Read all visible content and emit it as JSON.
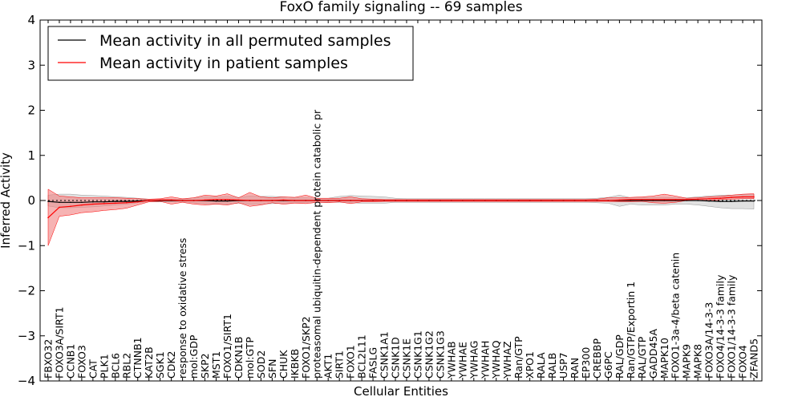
{
  "chart_data": {
    "type": "line",
    "title": "FoxO family signaling -- 69 samples",
    "xlabel": "Cellular Entities",
    "ylabel": "Inferred Activity",
    "ylim": [
      -4,
      4
    ],
    "yticks": [
      -4,
      -3,
      -2,
      -1,
      0,
      1,
      2,
      3,
      4
    ],
    "legend_position": "top-left",
    "colors": {
      "permuted": "#000000",
      "patient": "#ff0000",
      "patient_band": "#f08080",
      "permuted_band": "#c8c8c8"
    },
    "categories": [
      "FBXO32",
      "FOXO3A/SIRT1",
      "CCNB1",
      "FOXO3",
      "CAT",
      "PLK1",
      "BCL6",
      "RBL2",
      "CTNNB1",
      "KAT2B",
      "SGK1",
      "CDK2",
      "response to oxidative stress",
      "mol:GDP",
      "SKP2",
      "MST1",
      "FOXO1/SIRT1",
      "CDKN1B",
      "mol:GTP",
      "SOD2",
      "SFN",
      "CHUK",
      "IKBKB",
      "FOXO1/SKP2",
      "proteasomal ubiquitin-dependent protein catabolic pr",
      "AKT1",
      "SIRT1",
      "FOXO1",
      "BCL2L11",
      "FASLG",
      "CSNK1A1",
      "CSNK1D",
      "CSNK1E",
      "CSNK1G1",
      "CSNK1G2",
      "CSNK1G3",
      "YWHAB",
      "YWHAE",
      "YWHAG",
      "YWHAH",
      "YWHAQ",
      "YWHAZ",
      "Ran/GTP",
      "XPO1",
      "RALA",
      "RALB",
      "USP7",
      "RAN",
      "EP300",
      "CREBBP",
      "G6PC",
      "RAL/GDP",
      "Ran/GTP/Exportin 1",
      "RAL/GTP",
      "GADD45A",
      "MAPK10",
      "FOXO1-3a-4/beta catenin",
      "MAPK9",
      "MAPK8",
      "FOXO3A/14-3-3",
      "FOXO4/14-3-3 family",
      "FOXO1/14-3-3 family",
      "FOXO4",
      "ZFAND5"
    ],
    "series": [
      {
        "name": "Mean activity in all permuted samples",
        "values": [
          -0.02,
          -0.04,
          -0.04,
          -0.04,
          -0.03,
          -0.03,
          -0.02,
          -0.02,
          -0.01,
          0.0,
          0.0,
          0.0,
          0.0,
          0.0,
          0.0,
          -0.01,
          -0.01,
          0.0,
          0.0,
          0.0,
          0.0,
          0.0,
          0.0,
          0.0,
          0.0,
          0.0,
          0.0,
          0.0,
          0.0,
          0.0,
          0.0,
          0.0,
          0.0,
          0.0,
          0.0,
          0.0,
          0.0,
          0.0,
          0.0,
          0.0,
          0.0,
          0.0,
          0.0,
          0.0,
          0.0,
          0.0,
          0.0,
          0.0,
          0.0,
          0.0,
          0.0,
          0.0,
          0.0,
          0.0,
          0.0,
          0.0,
          0.0,
          0.0,
          0.0,
          -0.01,
          -0.02,
          -0.02,
          -0.01,
          -0.01
        ],
        "lower": [
          -0.12,
          -0.16,
          -0.16,
          -0.15,
          -0.14,
          -0.12,
          -0.1,
          -0.08,
          -0.05,
          -0.03,
          -0.03,
          -0.03,
          -0.03,
          -0.05,
          -0.07,
          -0.08,
          -0.08,
          -0.06,
          -0.08,
          -0.08,
          -0.07,
          -0.06,
          -0.05,
          -0.04,
          -0.04,
          -0.04,
          -0.04,
          -0.05,
          -0.06,
          -0.06,
          -0.06,
          -0.04,
          -0.04,
          -0.04,
          -0.04,
          -0.04,
          -0.04,
          -0.04,
          -0.04,
          -0.04,
          -0.04,
          -0.04,
          -0.04,
          -0.04,
          -0.04,
          -0.04,
          -0.04,
          -0.04,
          -0.04,
          -0.05,
          -0.06,
          -0.13,
          -0.08,
          -0.1,
          -0.1,
          -0.1,
          -0.08,
          -0.08,
          -0.1,
          -0.13,
          -0.16,
          -0.18,
          -0.18,
          -0.19
        ],
        "upper": [
          0.12,
          0.14,
          0.14,
          0.12,
          0.11,
          0.1,
          0.08,
          0.07,
          0.05,
          0.03,
          0.03,
          0.03,
          0.03,
          0.06,
          0.08,
          0.08,
          0.09,
          0.07,
          0.1,
          0.09,
          0.09,
          0.08,
          0.07,
          0.06,
          0.05,
          0.05,
          0.09,
          0.11,
          0.1,
          0.09,
          0.08,
          0.05,
          0.04,
          0.04,
          0.04,
          0.04,
          0.04,
          0.04,
          0.04,
          0.04,
          0.04,
          0.04,
          0.04,
          0.04,
          0.04,
          0.04,
          0.04,
          0.04,
          0.04,
          0.05,
          0.07,
          0.12,
          0.06,
          0.07,
          0.07,
          0.07,
          0.06,
          0.06,
          0.08,
          0.1,
          0.12,
          0.12,
          0.13,
          0.14
        ]
      },
      {
        "name": "Mean activity in patient samples",
        "values": [
          -0.38,
          -0.15,
          -0.13,
          -0.1,
          -0.08,
          -0.07,
          -0.06,
          -0.05,
          -0.03,
          0.0,
          0.01,
          0.01,
          0.0,
          0.0,
          0.01,
          0.02,
          0.02,
          0.01,
          0.0,
          0.0,
          0.0,
          0.01,
          0.0,
          0.0,
          0.0,
          0.0,
          0.0,
          0.0,
          0.0,
          0.0,
          0.0,
          0.0,
          0.0,
          0.0,
          0.0,
          0.0,
          0.0,
          0.0,
          0.0,
          0.0,
          0.0,
          0.0,
          0.0,
          0.0,
          0.0,
          0.0,
          0.0,
          0.0,
          0.0,
          0.0,
          0.0,
          0.01,
          0.02,
          0.02,
          0.02,
          0.02,
          0.02,
          0.02,
          0.03,
          0.04,
          0.05,
          0.07,
          0.08,
          0.08
        ],
        "lower": [
          -1.0,
          -0.35,
          -0.32,
          -0.27,
          -0.25,
          -0.22,
          -0.2,
          -0.17,
          -0.1,
          -0.03,
          -0.02,
          -0.08,
          -0.04,
          -0.08,
          -0.1,
          -0.08,
          -0.1,
          -0.05,
          -0.13,
          -0.1,
          -0.05,
          -0.08,
          -0.06,
          -0.07,
          -0.04,
          -0.05,
          -0.03,
          -0.07,
          -0.03,
          -0.03,
          -0.02,
          -0.02,
          -0.02,
          -0.02,
          -0.02,
          -0.02,
          -0.02,
          -0.02,
          -0.02,
          -0.02,
          -0.02,
          -0.02,
          -0.02,
          -0.02,
          -0.02,
          -0.02,
          -0.02,
          -0.02,
          -0.02,
          -0.02,
          -0.02,
          -0.03,
          -0.03,
          -0.02,
          -0.05,
          -0.06,
          -0.04,
          0.0,
          0.0,
          0.0,
          0.02,
          0.03,
          0.04,
          0.04
        ],
        "upper": [
          0.25,
          0.1,
          0.08,
          0.06,
          0.06,
          0.06,
          0.06,
          0.05,
          0.04,
          0.03,
          0.04,
          0.08,
          0.04,
          0.06,
          0.12,
          0.1,
          0.15,
          0.06,
          0.18,
          0.08,
          0.06,
          0.08,
          0.07,
          0.12,
          0.05,
          0.05,
          0.05,
          0.08,
          0.04,
          0.03,
          0.02,
          0.02,
          0.02,
          0.02,
          0.02,
          0.02,
          0.02,
          0.02,
          0.02,
          0.02,
          0.02,
          0.02,
          0.02,
          0.02,
          0.02,
          0.02,
          0.02,
          0.02,
          0.02,
          0.03,
          0.06,
          0.06,
          0.07,
          0.08,
          0.1,
          0.14,
          0.1,
          0.05,
          0.06,
          0.08,
          0.09,
          0.12,
          0.14,
          0.15
        ]
      }
    ]
  }
}
